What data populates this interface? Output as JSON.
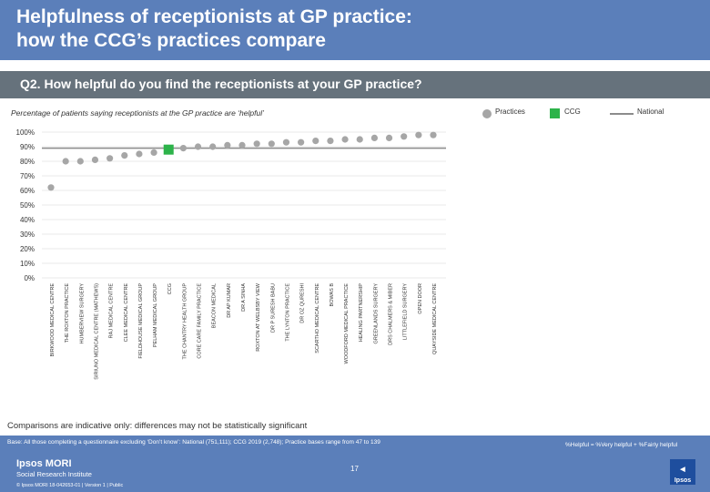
{
  "title": "Helpfulness of receptionists at GP practice:\nhow the CCG’s practices compare",
  "question": "Q2. How helpful do you find the receptionists at your GP practice?",
  "subtitle": "Percentage of patients saying receptionists at the GP practice are ‘helpful’",
  "legend": {
    "practices": "Practices",
    "ccg": "CCG",
    "national": "National"
  },
  "colors": {
    "header": "#5b7fba",
    "question_bar": "#66727c",
    "practice_dot": "#a6a6a6",
    "ccg": "#2db34a",
    "national_line": "#8c8c8c"
  },
  "chart_data": {
    "type": "scatter",
    "ylim": [
      0,
      100
    ],
    "yticks": [
      "0%",
      "10%",
      "20%",
      "30%",
      "40%",
      "50%",
      "60%",
      "70%",
      "80%",
      "90%",
      "100%"
    ],
    "categories": [
      "BIRKWOOD MEDICAL CENTRE",
      "THE ROXTON PRACTICE",
      "HUMBERVIEW SURGERY",
      "SIRIUNO MEDICAL CENTRE (MATHEWS)",
      "RAJ MEDICAL CENTRE",
      "CLEE MEDICAL CENTRE",
      "FIELDHOUSE MEDICAL GROUP",
      "PELHAM MEDICAL GROUP",
      "CCG",
      "THE CHANTRY HEALTH GROUP",
      "CORE CARE FAMILY PRACTICE",
      "BEACON MEDICAL",
      "DR AP KUMAR",
      "DR A SINHA",
      "ROXTON AT WELBSBY VIEW",
      "DR P SURESH BABU",
      "THE LYNTON PRACTICE",
      "DR OZ QURESHI",
      "SCARTHO MEDICAL CENTRE",
      "BOWAS B",
      "WOODFORD MEDICAL PRACTICE",
      "HEALING PARTNERSHIP",
      "GREENLANDS SURGERY",
      "DRS CHALMERS & MIBER",
      "LITTLEFIELD SURGERY",
      "OPEN DOOR",
      "QUAYSIDE MEDICAL CENTRE"
    ],
    "values": [
      62,
      80,
      80,
      81,
      82,
      84,
      85,
      86,
      88,
      89,
      90,
      90,
      91,
      91,
      92,
      92,
      93,
      93,
      94,
      94,
      95,
      95,
      96,
      96,
      97,
      98,
      98
    ],
    "ccg_index": 8,
    "ccg_value": 88,
    "national_value": 89
  },
  "note": "Comparisons are indicative only: differences may not be statistically significant",
  "base": "Base: All those completing a questionnaire excluding ‘Don’t know’: National (751,111); CCG 2019 (2,748); Practice bases range from 47 to 139",
  "formula": "%Helpful = %Very helpful + %Fairly helpful",
  "page_number": "17",
  "logo": {
    "line1": "Ipsos MORI",
    "line2": "Social Research Institute",
    "ipsos": "Ipsos"
  },
  "footer": "© Ipsos MORI     18-042653-01 | Version 1 | Public"
}
